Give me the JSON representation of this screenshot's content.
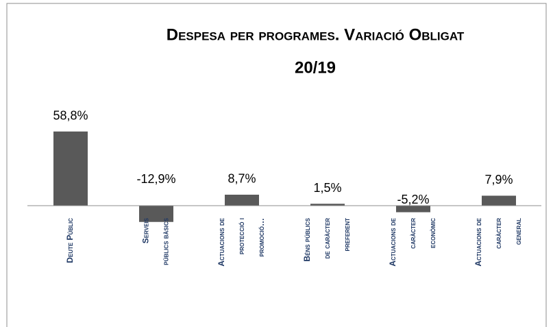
{
  "chart_data": {
    "type": "bar",
    "title": [
      "Despesa per programes. Variació Obligat",
      "20/19"
    ],
    "categories": [
      [
        "Deute Públic"
      ],
      [
        "Serveis",
        "públics bàsics"
      ],
      [
        "Actuacions de",
        "protecció i",
        "promoció…"
      ],
      [
        "Béns públics",
        "de caràcter",
        "preferent"
      ],
      [
        "Actuacions de",
        "caràcter",
        "econòmic"
      ],
      [
        "Actuacions de",
        "caràcter",
        "general"
      ]
    ],
    "values": [
      58.8,
      -12.9,
      8.7,
      1.5,
      -5.2,
      7.9
    ],
    "value_labels": [
      "58,8%",
      "-12,9%",
      "8,7%",
      "1,5%",
      "-5,2%",
      "7,9%"
    ],
    "color": "#595959"
  }
}
